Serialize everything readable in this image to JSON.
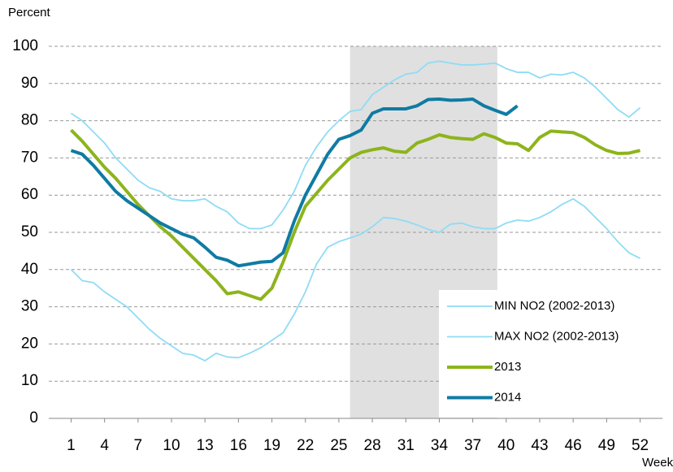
{
  "chart_data": {
    "type": "line",
    "y_axis_label": "Percent",
    "x_axis_label": "Week",
    "x": [
      1,
      2,
      3,
      4,
      5,
      6,
      7,
      8,
      9,
      10,
      11,
      12,
      13,
      14,
      15,
      16,
      17,
      18,
      19,
      20,
      21,
      22,
      23,
      24,
      25,
      26,
      27,
      28,
      29,
      30,
      31,
      32,
      33,
      34,
      35,
      36,
      37,
      38,
      39,
      40,
      41,
      42,
      43,
      44,
      45,
      46,
      47,
      48,
      49,
      50,
      51,
      52
    ],
    "xlim": [
      -1,
      54
    ],
    "xticks": [
      1,
      4,
      7,
      10,
      13,
      16,
      19,
      22,
      25,
      28,
      31,
      34,
      37,
      40,
      43,
      46,
      49,
      52
    ],
    "ylim": [
      0,
      100
    ],
    "yticks": [
      0,
      10,
      20,
      30,
      40,
      50,
      60,
      70,
      80,
      90,
      100
    ],
    "grid": true,
    "shaded_range": [
      26,
      39.2
    ],
    "shade_color": "#e0e0e0",
    "legend": "lower right",
    "series": [
      {
        "name": "MIN NO2 (2002-2013)",
        "color": "#8fdcf5",
        "values": [
          40,
          37,
          36.5,
          34,
          32,
          30,
          27,
          24,
          21.5,
          19.5,
          17.5,
          17,
          15.5,
          17.5,
          16.5,
          16.3,
          17.5,
          19,
          21,
          23,
          28,
          34,
          41.5,
          46,
          47.5,
          48.5,
          49.5,
          51.5,
          54,
          53.7,
          53,
          52,
          50.8,
          50,
          52.2,
          52.5,
          51.5,
          51,
          51,
          52.5,
          53.3,
          53,
          54,
          55.5,
          57.5,
          59,
          57,
          54,
          51,
          47.5,
          44.5,
          43
        ]
      },
      {
        "name": "MAX NO2 (2002-2013)",
        "color": "#8fdcf5",
        "values": [
          82,
          80,
          77,
          74,
          70,
          67,
          64,
          62,
          61,
          59,
          58.5,
          58.5,
          59,
          57,
          55.5,
          52.5,
          51,
          51,
          52,
          56,
          61,
          68,
          73,
          77,
          80,
          82.5,
          83,
          87,
          89,
          91,
          92.5,
          93,
          95.5,
          96,
          95.5,
          95,
          95,
          95.2,
          95.5,
          94,
          93,
          93,
          91.5,
          92.5,
          92.3,
          93,
          91.5,
          89,
          86,
          83,
          81,
          83.5
        ]
      },
      {
        "name": "2013",
        "color": "#8db41c",
        "values": [
          77.5,
          74.5,
          71,
          67.5,
          64.5,
          61,
          57.5,
          54.5,
          51.5,
          49,
          46,
          43,
          40,
          37,
          33.5,
          34,
          33,
          32,
          35,
          42,
          50,
          57,
          60.5,
          64,
          67,
          70,
          71.5,
          72.2,
          72.7,
          71.8,
          71.5,
          74,
          75,
          76.2,
          75.5,
          75.2,
          75,
          76.5,
          75.5,
          74,
          73.8,
          72,
          75.5,
          77.2,
          77,
          76.8,
          75.5,
          73.5,
          72,
          71.2,
          71.3,
          72
        ]
      },
      {
        "name": "2014",
        "color": "#0f7ba3",
        "values": [
          72,
          71,
          68,
          64.5,
          61,
          58.5,
          56.5,
          54.5,
          52.5,
          51,
          49.5,
          48.5,
          46,
          43.3,
          42.5,
          41,
          41.5,
          42,
          42.2,
          44.5,
          53,
          60,
          65.5,
          71,
          75,
          76,
          77.5,
          82,
          83.2,
          83.2,
          83.2,
          84,
          85.7,
          85.8,
          85.5,
          85.6,
          85.8,
          84,
          82.8,
          81.7,
          84,
          null,
          null,
          null,
          null,
          null,
          null,
          null,
          null,
          null,
          null,
          null
        ]
      }
    ]
  }
}
